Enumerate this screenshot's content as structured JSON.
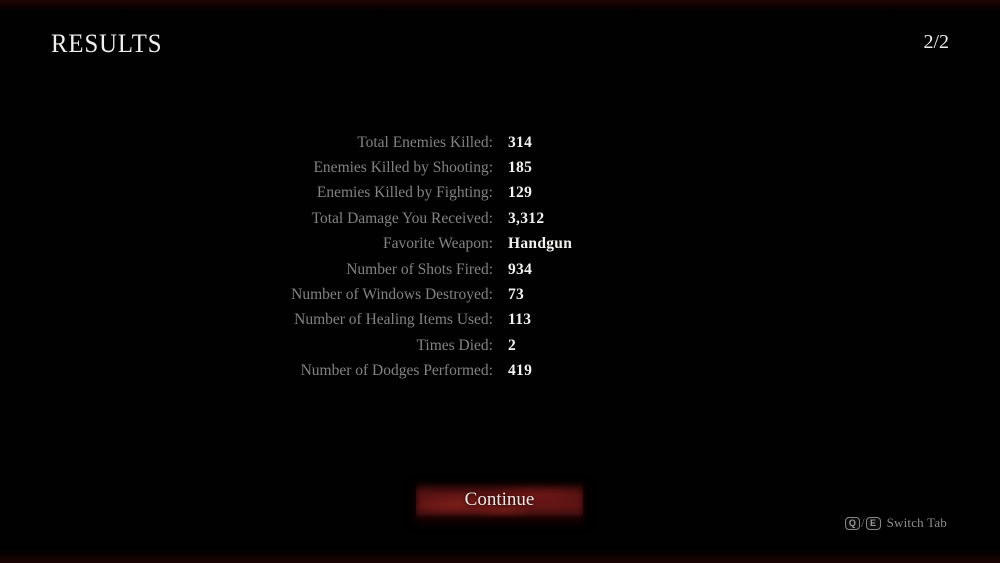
{
  "header": {
    "title": "RESULTS",
    "page_indicator": "2/2"
  },
  "stats": [
    {
      "label": "Total Enemies Killed:",
      "value": "314"
    },
    {
      "label": "Enemies Killed by Shooting:",
      "value": "185"
    },
    {
      "label": "Enemies Killed by Fighting:",
      "value": "129"
    },
    {
      "label": "Total Damage You Received:",
      "value": "3,312"
    },
    {
      "label": "Favorite Weapon:",
      "value": "Handgun"
    },
    {
      "label": "Number of Shots Fired:",
      "value": "934"
    },
    {
      "label": "Number of Windows Destroyed:",
      "value": "73"
    },
    {
      "label": "Number of Healing Items Used:",
      "value": "113"
    },
    {
      "label": "Times Died:",
      "value": "2"
    },
    {
      "label": "Number of Dodges Performed:",
      "value": "419"
    }
  ],
  "continue_button": {
    "label": "Continue"
  },
  "footer": {
    "key_q": "Q",
    "separator": "/",
    "key_e": "E",
    "hint": "Switch Tab"
  },
  "colors": {
    "background": "#010101",
    "label_gray": "#838383",
    "value_white": "#f3f2f1",
    "button_red": "#5e1514",
    "hint_gray": "#8e8e8e"
  }
}
